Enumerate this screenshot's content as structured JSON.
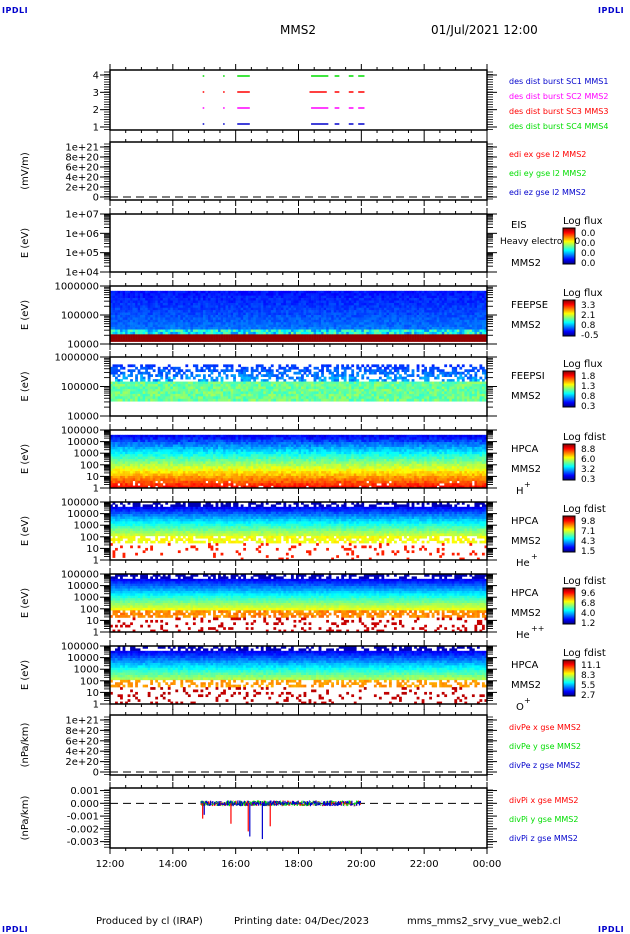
{
  "header": {
    "corner_tag": "IPDLI",
    "spacecraft": "MMS2",
    "start_datetime": "01/Jul/2021 12:00"
  },
  "footer": {
    "produced_by": "Produced by cl (IRAP)",
    "printing_date": "Printing date: 04/Dec/2023",
    "script_name": "mms_mms2_srvy_vue_web2.cl"
  },
  "x_axis": {
    "tick_labels": [
      "12:00",
      "14:00",
      "16:00",
      "18:00",
      "20:00",
      "22:00",
      "00:00"
    ]
  },
  "colors": {
    "red": "#ff0000",
    "green": "#00dd00",
    "blue": "#0000cc",
    "magenta": "#ff00ff"
  },
  "chart_data": [
    {
      "type": "line",
      "id": "des-dist-burst",
      "ylabel": "",
      "yticks": [
        "1",
        "2",
        "3",
        "4"
      ],
      "ylim": [
        0.7,
        4.3
      ],
      "legend": [
        {
          "label": "des dist burst SC1 MMS1",
          "color": "#0000cc"
        },
        {
          "label": "des dist burst SC2 MMS2",
          "color": "#ff00ff"
        },
        {
          "label": "des dist burst SC3 MMS3",
          "color": "#ff0000"
        },
        {
          "label": "des dist burst SC4 MMS4",
          "color": "#00dd00"
        }
      ],
      "series": [
        {
          "name": "SC1",
          "y": 1,
          "intervals_hours": [
            [
              14.95,
              15.0
            ],
            [
              15.6,
              15.65
            ],
            [
              16.05,
              16.45
            ],
            [
              18.4,
              18.95
            ],
            [
              19.15,
              19.3
            ],
            [
              19.6,
              19.75
            ],
            [
              19.9,
              20.1
            ]
          ]
        },
        {
          "name": "SC2",
          "y": 2,
          "intervals_hours": [
            [
              14.95,
              15.0
            ],
            [
              15.6,
              15.65
            ],
            [
              16.05,
              16.45
            ],
            [
              18.4,
              18.95
            ],
            [
              19.15,
              19.3
            ],
            [
              19.6,
              19.75
            ],
            [
              19.9,
              20.1
            ]
          ]
        },
        {
          "name": "SC3",
          "y": 3,
          "intervals_hours": [
            [
              14.95,
              15.0
            ],
            [
              15.6,
              15.65
            ],
            [
              16.05,
              16.45
            ],
            [
              18.35,
              18.9
            ],
            [
              19.15,
              19.3
            ],
            [
              19.6,
              19.75
            ],
            [
              19.9,
              20.1
            ]
          ]
        },
        {
          "name": "SC4",
          "y": 4,
          "intervals_hours": [
            [
              14.95,
              15.0
            ],
            [
              15.6,
              15.65
            ],
            [
              16.05,
              16.45
            ],
            [
              18.4,
              18.95
            ],
            [
              19.15,
              19.3
            ],
            [
              19.6,
              19.75
            ],
            [
              19.9,
              20.1
            ]
          ]
        }
      ]
    },
    {
      "type": "line",
      "id": "edi-e-field",
      "ylabel": "(mV/m)",
      "yticks": [
        "0",
        "2e+20",
        "4e+20",
        "6e+20",
        "8e+20",
        "1e+21"
      ],
      "ylim": [
        0,
        1.1e+21
      ],
      "legend": [
        {
          "label": "edi ex gse l2 MMS2",
          "color": "#ff0000"
        },
        {
          "label": "edi ey gse l2 MMS2",
          "color": "#00dd00"
        },
        {
          "label": "edi ez gse l2 MMS2",
          "color": "#0000cc"
        }
      ],
      "zero_line": true
    },
    {
      "type": "heatmap",
      "id": "eis",
      "ylabel": "E (eV)",
      "yticks": [
        "1e+04",
        "1e+05",
        "1e+06",
        "1e+07"
      ],
      "instrument": "EIS",
      "note": "Heavy electron t0",
      "spacecraft": "MMS2",
      "colorbar_title": "Log flux",
      "colorbar_values": [
        "0.0",
        "0.0",
        "0.0",
        "0.0"
      ],
      "empty": true
    },
    {
      "type": "heatmap",
      "id": "feepse",
      "ylabel": "E (eV)",
      "yticks": [
        "10000",
        "100000",
        "1000000"
      ],
      "instrument": "FEEPSE",
      "spacecraft": "MMS2",
      "colorbar_title": "Log flux",
      "colorbar_values": [
        "3.3",
        "2.1",
        "0.8",
        "-0.5"
      ],
      "pattern": "feepse"
    },
    {
      "type": "heatmap",
      "id": "feepsi",
      "ylabel": "E (eV)",
      "yticks": [
        "10000",
        "100000",
        "1000000"
      ],
      "instrument": "FEEPSI",
      "spacecraft": "MMS2",
      "colorbar_title": "Log flux",
      "colorbar_values": [
        "1.8",
        "1.3",
        "0.8",
        "0.3"
      ],
      "pattern": "feepsi"
    },
    {
      "type": "heatmap",
      "id": "hpca-h",
      "ylabel": "E (eV)",
      "yticks": [
        "1",
        "10",
        "100",
        "1000",
        "10000",
        "100000"
      ],
      "instrument": "HPCA",
      "spacecraft": "MMS2",
      "species": "H",
      "species_charge": "+",
      "colorbar_title": "Log fdist",
      "colorbar_values": [
        "8.8",
        "6.0",
        "3.2",
        "0.3"
      ],
      "pattern": "hplus"
    },
    {
      "type": "heatmap",
      "id": "hpca-he",
      "ylabel": "E (eV)",
      "yticks": [
        "1",
        "10",
        "100",
        "1000",
        "10000",
        "100000"
      ],
      "instrument": "HPCA",
      "spacecraft": "MMS2",
      "species": "He",
      "species_charge": "+",
      "colorbar_title": "Log fdist",
      "colorbar_values": [
        "9.8",
        "7.1",
        "4.3",
        "1.5"
      ],
      "pattern": "heplus"
    },
    {
      "type": "heatmap",
      "id": "hpca-hepp",
      "ylabel": "E (eV)",
      "yticks": [
        "1",
        "10",
        "100",
        "1000",
        "10000",
        "100000"
      ],
      "instrument": "HPCA",
      "spacecraft": "MMS2",
      "species": "He",
      "species_charge": "++",
      "colorbar_title": "Log fdist",
      "colorbar_values": [
        "9.6",
        "6.8",
        "4.0",
        "1.2"
      ],
      "pattern": "heplusplus"
    },
    {
      "type": "heatmap",
      "id": "hpca-o",
      "ylabel": "E (eV)",
      "yticks": [
        "1",
        "10",
        "100",
        "1000",
        "10000",
        "100000"
      ],
      "instrument": "HPCA",
      "spacecraft": "MMS2",
      "species": "O",
      "species_charge": "+",
      "colorbar_title": "Log fdist",
      "colorbar_values": [
        "11.1",
        "8.3",
        "5.5",
        "2.7"
      ],
      "pattern": "oplus"
    },
    {
      "type": "line",
      "id": "div-pe",
      "ylabel": "(nPa/km)",
      "yticks": [
        "0",
        "2e+20",
        "4e+20",
        "6e+20",
        "8e+20",
        "1e+21"
      ],
      "ylim": [
        0,
        1.1e+21
      ],
      "legend": [
        {
          "label": "divPe x gse MMS2",
          "color": "#ff0000"
        },
        {
          "label": "divPe y gse MMS2",
          "color": "#00dd00"
        },
        {
          "label": "divPe z gse MMS2",
          "color": "#0000cc"
        }
      ],
      "zero_line": true
    },
    {
      "type": "line",
      "id": "div-pi",
      "ylabel": "(nPa/km)",
      "yticks": [
        "-0.003",
        "-0.002",
        "-0.001",
        "0.000",
        "0.001"
      ],
      "ylim": [
        -0.0035,
        0.0012
      ],
      "legend": [
        {
          "label": "divPi x gse MMS2",
          "color": "#ff0000"
        },
        {
          "label": "divPi y gse MMS2",
          "color": "#00dd00"
        },
        {
          "label": "divPi z gse MMS2",
          "color": "#0000cc"
        }
      ],
      "zero_line": true,
      "data_range_hours": [
        14.9,
        20.0
      ],
      "spikes": [
        {
          "t": 14.95,
          "series": "x",
          "value": -0.0012
        },
        {
          "t": 15.85,
          "series": "x",
          "value": -0.0016
        },
        {
          "t": 16.4,
          "series": "x",
          "value": -0.0022
        },
        {
          "t": 16.45,
          "series": "z",
          "value": -0.0026
        },
        {
          "t": 16.85,
          "series": "z",
          "value": -0.0028
        },
        {
          "t": 17.1,
          "series": "x",
          "value": -0.0018
        },
        {
          "t": 15.0,
          "series": "z",
          "value": -0.0009
        }
      ]
    }
  ]
}
